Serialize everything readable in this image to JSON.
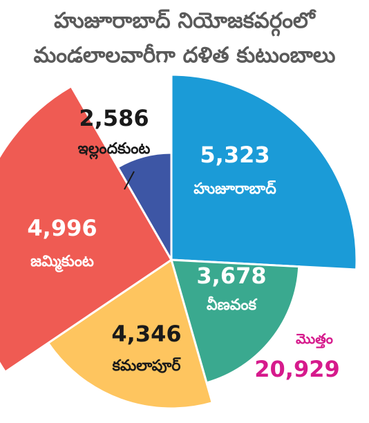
{
  "chart_data": {
    "type": "pie",
    "title": [
      "హుజూరాబాద్ నియోజకవర్గంలో",
      "మండలాలవారీగా దళిత కుటుంబాలు"
    ],
    "slices": [
      {
        "label": "హుజూరాబాద్",
        "value": "5,323",
        "color": "#1b9bd7",
        "label_color": "#ffffff"
      },
      {
        "label": "వీణవంక",
        "value": "3,678",
        "color": "#3aa98f",
        "label_color": "#ffffff"
      },
      {
        "label": "కమలాపూర్",
        "value": "4,346",
        "color": "#fec55f",
        "label_color": "#1a1a1a"
      },
      {
        "label": "జమ్మికుంట",
        "value": "4,996",
        "color": "#ef5b53",
        "label_color": "#ffffff"
      },
      {
        "label": "ఇల్లందకుంట",
        "value": "2,586",
        "color": "#3d56a5",
        "label_color": "#1a1a1a"
      }
    ],
    "total": {
      "label": "మొత్తం",
      "value": "20,929",
      "color": "#d61a8c"
    }
  }
}
